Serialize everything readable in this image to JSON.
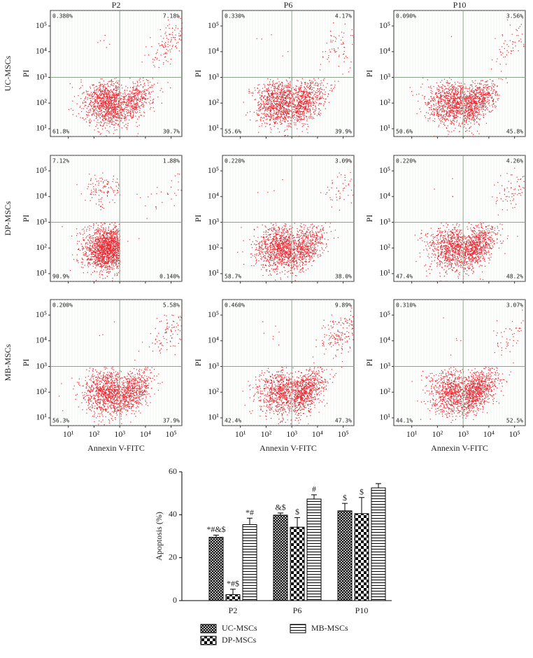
{
  "chart_data": [
    {
      "type": "flow-grid",
      "column_titles": [
        "P2",
        "P6",
        "P10"
      ],
      "row_titles": [
        "UC-MSCs",
        "DP-MSCs",
        "MB-MSCs"
      ],
      "xlabel": "Annexin V-FITC",
      "ylabel": "PI",
      "log": true,
      "xlim": [
        2,
        262144
      ],
      "ylim": [
        5,
        400000
      ],
      "xticks": [
        {
          "value": 10,
          "label": "10¹"
        },
        {
          "value": 100,
          "label": "10²"
        },
        {
          "value": 1000,
          "label": "10³"
        },
        {
          "value": 10000,
          "label": "10⁴"
        },
        {
          "value": 100000,
          "label": "10⁵"
        }
      ],
      "yticks": [
        {
          "value": 10,
          "label": "10¹"
        },
        {
          "value": 100,
          "label": "10²"
        },
        {
          "value": 1000,
          "label": "10³"
        },
        {
          "value": 10000,
          "label": "10⁴"
        },
        {
          "value": 100000,
          "label": "10⁵"
        }
      ],
      "gates": {
        "x": 1000,
        "y": 1000
      },
      "color": "#e8262f",
      "panels": [
        [
          {
            "values": [
              0.38,
              7.18,
              61.8,
              30.7
            ],
            "value_labels": [
              "0.380%",
              "7.18%",
              "61.8%",
              "30.7%"
            ]
          },
          {
            "values": [
              0.33,
              4.17,
              55.6,
              39.9
            ],
            "value_labels": [
              "0.330%",
              "4.17%",
              "55.6%",
              "39.9%"
            ]
          },
          {
            "values": [
              0.09,
              3.56,
              50.6,
              45.8
            ],
            "value_labels": [
              "0.090%",
              "3.56%",
              "50.6%",
              "45.8%"
            ]
          }
        ],
        [
          {
            "values": [
              7.12,
              1.88,
              90.9,
              0.14
            ],
            "value_labels": [
              "7.12%",
              "1.88%",
              "90.9%",
              "0.140%"
            ]
          },
          {
            "values": [
              0.22,
              3.09,
              58.7,
              38.0
            ],
            "value_labels": [
              "0.220%",
              "3.09%",
              "58.7%",
              "38.0%"
            ]
          },
          {
            "values": [
              0.22,
              4.26,
              47.4,
              48.2
            ],
            "value_labels": [
              "0.220%",
              "4.26%",
              "47.4%",
              "48.2%"
            ]
          }
        ],
        [
          {
            "values": [
              0.2,
              5.58,
              56.3,
              37.9
            ],
            "value_labels": [
              "0.200%",
              "5.58%",
              "56.3%",
              "37.9%"
            ]
          },
          {
            "values": [
              0.46,
              9.89,
              42.4,
              47.3
            ],
            "value_labels": [
              "0.460%",
              "9.89%",
              "42.4%",
              "47.3%"
            ]
          },
          {
            "values": [
              0.31,
              3.07,
              44.1,
              52.5
            ],
            "value_labels": [
              "0.310%",
              "3.07%",
              "44.1%",
              "52.5%"
            ]
          }
        ]
      ]
    },
    {
      "type": "bar",
      "ylabel": "Apoptosis (%)",
      "categories": [
        "P2",
        "P6",
        "P10"
      ],
      "ylim": [
        0,
        60
      ],
      "yticks": [
        0,
        20,
        40,
        60
      ],
      "series": [
        {
          "name": "UC-MSCs",
          "color": "#000000",
          "pattern": "crosshatch",
          "values": [
            29.5,
            39.8,
            41.8
          ],
          "errors": [
            1,
            1,
            3.5
          ],
          "annotations": [
            "*#&$",
            "&$",
            "$"
          ]
        },
        {
          "name": "DP-MSCs",
          "color": "#000000",
          "pattern": "checker",
          "values": [
            2.8,
            34.2,
            40.5
          ],
          "errors": [
            2.5,
            4.5,
            7.5
          ],
          "annotations": [
            "*#$",
            "$",
            "$"
          ]
        },
        {
          "name": "MB-MSCs",
          "color": "#000000",
          "pattern": "hlines",
          "values": [
            35.4,
            47.3,
            52.5
          ],
          "errors": [
            3,
            2,
            2
          ],
          "annotations": [
            "*#",
            "#",
            null
          ]
        }
      ]
    }
  ]
}
